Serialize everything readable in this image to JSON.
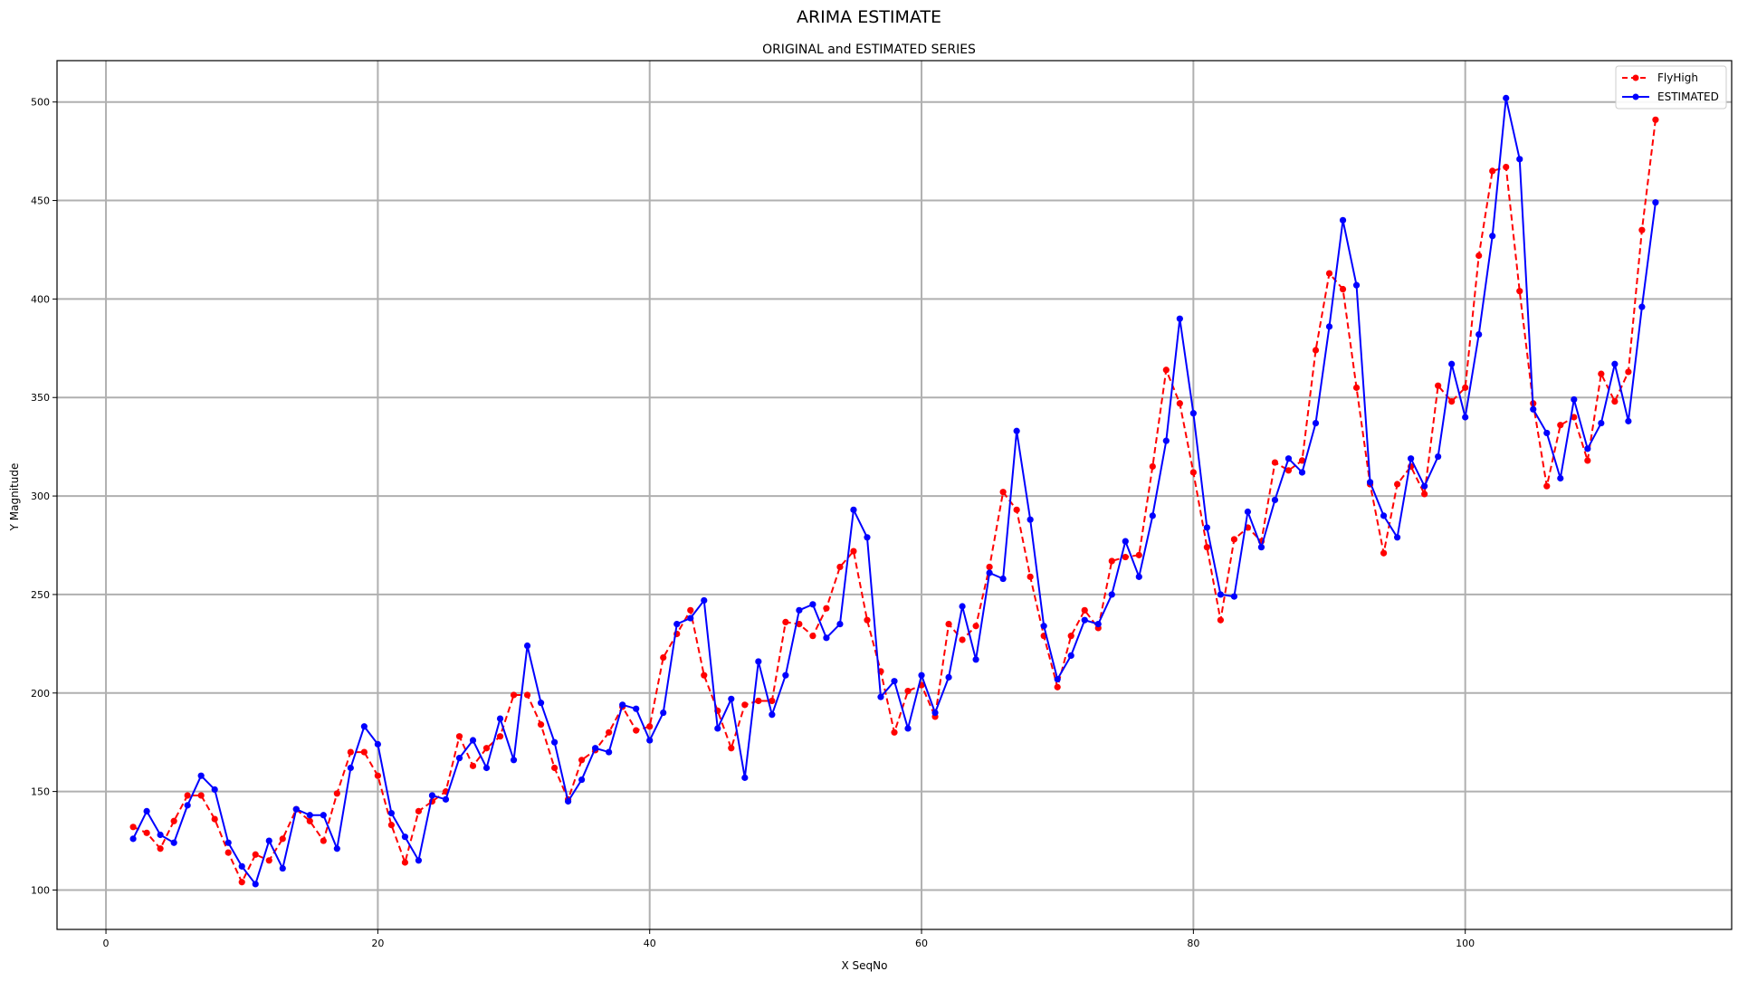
{
  "chart_data": {
    "type": "line",
    "title": "ARIMA ESTIMATE",
    "subtitle": "ORIGINAL and ESTIMATED SERIES",
    "xlabel": "X SeqNo",
    "ylabel": "Y Magnitude",
    "xlim": [
      -3.6,
      119.6
    ],
    "ylim": [
      80,
      521
    ],
    "xticks": [
      0,
      20,
      40,
      60,
      80,
      100
    ],
    "yticks": [
      100,
      150,
      200,
      250,
      300,
      350,
      400,
      450,
      500
    ],
    "grid": true,
    "legend_position": "top-right",
    "x": [
      2,
      3,
      4,
      5,
      6,
      7,
      8,
      9,
      10,
      11,
      12,
      13,
      14,
      15,
      16,
      17,
      18,
      19,
      20,
      21,
      22,
      23,
      24,
      25,
      26,
      27,
      28,
      29,
      30,
      31,
      32,
      33,
      34,
      35,
      36,
      37,
      38,
      39,
      40,
      41,
      42,
      43,
      44,
      45,
      46,
      47,
      48,
      49,
      50,
      51,
      52,
      53,
      54,
      55,
      56,
      57,
      58,
      59,
      60,
      61,
      62,
      63,
      64,
      65,
      66,
      67,
      68,
      69,
      70,
      71,
      72,
      73,
      74,
      75,
      76,
      77,
      78,
      79,
      80,
      81,
      82,
      83,
      84,
      85,
      86,
      87,
      88,
      89,
      90,
      91,
      92,
      93,
      94,
      95,
      96,
      97,
      98,
      99,
      100,
      101,
      102,
      103,
      104,
      105,
      106,
      107,
      108,
      109,
      110,
      111,
      112,
      113,
      114
    ],
    "series": [
      {
        "name": "FlyHigh",
        "color": "#ff0000",
        "line_style": "dashed",
        "marker": "circle",
        "values": [
          132,
          129,
          121,
          135,
          148,
          148,
          136,
          119,
          104,
          118,
          115,
          126,
          141,
          135,
          125,
          149,
          170,
          170,
          158,
          133,
          114,
          140,
          145,
          150,
          178,
          163,
          172,
          178,
          199,
          199,
          184,
          162,
          146,
          166,
          171,
          180,
          193,
          181,
          183,
          218,
          230,
          242,
          209,
          191,
          172,
          194,
          196,
          196,
          236,
          235,
          229,
          243,
          264,
          272,
          237,
          211,
          180,
          201,
          204,
          188,
          235,
          227,
          234,
          264,
          302,
          293,
          259,
          229,
          203,
          229,
          242,
          233,
          267,
          269,
          270,
          315,
          364,
          347,
          312,
          274,
          237,
          278,
          284,
          277,
          317,
          313,
          318,
          374,
          413,
          405,
          355,
          306,
          271,
          306,
          315,
          301,
          356,
          348,
          355,
          422,
          465,
          467,
          404,
          347,
          305,
          336,
          340,
          318,
          362,
          348,
          363,
          435,
          491
        ]
      },
      {
        "name": "ESTIMATED",
        "color": "#0000ff",
        "line_style": "solid",
        "marker": "circle",
        "values": [
          126,
          140,
          128,
          124,
          143,
          158,
          151,
          124,
          112,
          103,
          125,
          111,
          141,
          138,
          138,
          121,
          162,
          183,
          174,
          139,
          127,
          115,
          148,
          146,
          167,
          176,
          162,
          187,
          166,
          224,
          195,
          175,
          145,
          156,
          172,
          170,
          194,
          192,
          176,
          190,
          235,
          238,
          247,
          182,
          197,
          157,
          216,
          189,
          209,
          242,
          245,
          228,
          235,
          293,
          279,
          198,
          206,
          182,
          209,
          190,
          208,
          244,
          217,
          261,
          258,
          333,
          288,
          234,
          207,
          219,
          237,
          235,
          250,
          277,
          259,
          290,
          328,
          390,
          342,
          284,
          250,
          249,
          292,
          274,
          298,
          319,
          312,
          337,
          386,
          440,
          407,
          307,
          290,
          279,
          319,
          305,
          320,
          367,
          340,
          382,
          432,
          502,
          471,
          344,
          332,
          309,
          349,
          324,
          337,
          367,
          338,
          396,
          449
        ]
      }
    ]
  }
}
